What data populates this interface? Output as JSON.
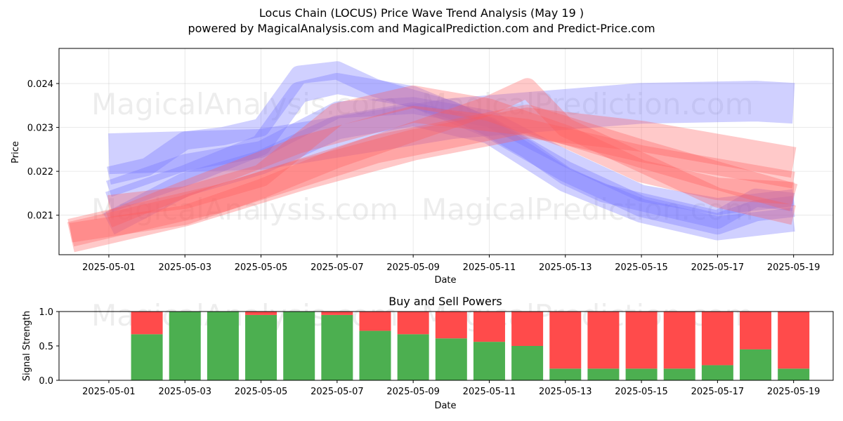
{
  "header": {
    "title": "Locus Chain (LOCUS) Price Wave Trend Analysis (May 19 )",
    "subtitle": "powered by MagicalAnalysis.com and MagicalPrediction.com and Predict-Price.com"
  },
  "watermarks": [
    "MagicalAnalysis.com",
    "MagicalPrediction.com"
  ],
  "colors": {
    "buy": "#4caf50",
    "sell": "#ff4b4b",
    "wave_blue": "#6f6fff",
    "wave_red": "#ff5a5a"
  },
  "chart_data": [
    {
      "type": "area",
      "name": "price-wave-chart",
      "xlabel": "Date",
      "ylabel": "Price",
      "x_ticks": [
        "2025-05-01",
        "2025-05-03",
        "2025-05-05",
        "2025-05-07",
        "2025-05-09",
        "2025-05-11",
        "2025-05-13",
        "2025-05-15",
        "2025-05-17",
        "2025-05-19"
      ],
      "y_ticks": [
        "0.021",
        "0.022",
        "0.023",
        "0.024"
      ],
      "xlim": [
        "2025-04-30",
        "2025-05-20"
      ],
      "ylim": [
        0.0201,
        0.0248
      ],
      "grid": true,
      "series": [
        {
          "color": "blue",
          "x": [
            "2025-05-01",
            "2025-05-05",
            "2025-05-10",
            "2025-05-15",
            "2025-05-18",
            "2025-05-19"
          ],
          "y": [
            0.0224,
            0.0225,
            0.0232,
            0.02355,
            0.0236,
            0.02355
          ]
        },
        {
          "color": "blue",
          "x": [
            "2025-05-01",
            "2025-05-02",
            "2025-05-03",
            "2025-05-04",
            "2025-05-05",
            "2025-05-06",
            "2025-05-07",
            "2025-05-08",
            "2025-05-10",
            "2025-05-11",
            "2025-05-12",
            "2025-05-13",
            "2025-05-14",
            "2025-05-15",
            "2025-05-16",
            "2025-05-17",
            "2025-05-18",
            "2025-05-19"
          ],
          "y": [
            0.0219,
            0.0221,
            0.0227,
            0.0228,
            0.023,
            0.0242,
            0.0243,
            0.0239,
            0.0234,
            0.023,
            0.0225,
            0.0219,
            0.0215,
            0.0213,
            0.0211,
            0.0209,
            0.0214,
            0.0213
          ]
        },
        {
          "color": "blue",
          "x": [
            "2025-05-01",
            "2025-05-03",
            "2025-05-05",
            "2025-05-06",
            "2025-05-07",
            "2025-05-09",
            "2025-05-11",
            "2025-05-13",
            "2025-05-15",
            "2025-05-17",
            "2025-05-18",
            "2025-05-19"
          ],
          "y": [
            0.0213,
            0.0219,
            0.0226,
            0.0238,
            0.024,
            0.0237,
            0.023,
            0.022,
            0.0212,
            0.0208,
            0.0211,
            0.0212
          ]
        },
        {
          "color": "blue",
          "x": [
            "2025-05-01",
            "2025-05-03",
            "2025-05-05",
            "2025-05-07",
            "2025-05-09",
            "2025-05-11",
            "2025-05-13",
            "2025-05-15",
            "2025-05-17",
            "2025-05-19"
          ],
          "y": [
            0.0208,
            0.0217,
            0.0222,
            0.023,
            0.0233,
            0.0229,
            0.0218,
            0.0211,
            0.0207,
            0.0209
          ]
        },
        {
          "color": "blue",
          "x": [
            "2025-05-01",
            "2025-05-03",
            "2025-05-05",
            "2025-05-07",
            "2025-05-09",
            "2025-05-11",
            "2025-05-13",
            "2025-05-15",
            "2025-05-17",
            "2025-05-19"
          ],
          "y": [
            0.0216,
            0.0222,
            0.0225,
            0.0234,
            0.0235,
            0.0232,
            0.0223,
            0.0215,
            0.0212,
            0.0214
          ]
        },
        {
          "color": "red",
          "x": [
            "2025-04-30",
            "2025-05-03",
            "2025-05-05",
            "2025-05-07",
            "2025-05-09",
            "2025-05-11",
            "2025-05-12",
            "2025-05-13",
            "2025-05-15",
            "2025-05-17",
            "2025-05-19"
          ],
          "y": [
            0.0206,
            0.021,
            0.0216,
            0.0223,
            0.0229,
            0.0235,
            0.0239,
            0.023,
            0.0222,
            0.0214,
            0.021
          ]
        },
        {
          "color": "red",
          "x": [
            "2025-04-30",
            "2025-05-03",
            "2025-05-06",
            "2025-05-09",
            "2025-05-12",
            "2025-05-15",
            "2025-05-19"
          ],
          "y": [
            0.0205,
            0.0211,
            0.0219,
            0.0226,
            0.0231,
            0.0228,
            0.0222
          ]
        },
        {
          "color": "red",
          "x": [
            "2025-05-01",
            "2025-05-03",
            "2025-05-05",
            "2025-05-07",
            "2025-05-09",
            "2025-05-11",
            "2025-05-13",
            "2025-05-15",
            "2025-05-17",
            "2025-05-19"
          ],
          "y": [
            0.0212,
            0.0214,
            0.0219,
            0.0233,
            0.0237,
            0.0234,
            0.0228,
            0.022,
            0.0216,
            0.0215
          ]
        },
        {
          "color": "red",
          "x": [
            "2025-05-01",
            "2025-05-03",
            "2025-05-06",
            "2025-05-09",
            "2025-05-12",
            "2025-05-15",
            "2025-05-19"
          ],
          "y": [
            0.0209,
            0.0216,
            0.0226,
            0.0233,
            0.023,
            0.0224,
            0.0218
          ]
        },
        {
          "color": "red",
          "x": [
            "2025-04-30",
            "2025-05-04",
            "2025-05-08",
            "2025-05-12",
            "2025-05-15",
            "2025-05-19"
          ],
          "y": [
            0.0206,
            0.0214,
            0.0225,
            0.0232,
            0.0224,
            0.0214
          ]
        }
      ]
    },
    {
      "type": "bar",
      "name": "buy-sell-powers-chart",
      "title": "Buy and Sell Powers",
      "xlabel": "Date",
      "ylabel": "Signal Strength",
      "x_ticks": [
        "2025-05-01",
        "2025-05-03",
        "2025-05-05",
        "2025-05-07",
        "2025-05-09",
        "2025-05-11",
        "2025-05-13",
        "2025-05-15",
        "2025-05-17",
        "2025-05-19"
      ],
      "y_ticks": [
        "0.0",
        "0.5",
        "1.0"
      ],
      "ylim": [
        0,
        1
      ],
      "categories": [
        "2025-05-02",
        "2025-05-03",
        "2025-05-04",
        "2025-05-05",
        "2025-05-06",
        "2025-05-07",
        "2025-05-08",
        "2025-05-09",
        "2025-05-10",
        "2025-05-11",
        "2025-05-12",
        "2025-05-13",
        "2025-05-14",
        "2025-05-15",
        "2025-05-16",
        "2025-05-17",
        "2025-05-18",
        "2025-05-19"
      ],
      "series": [
        {
          "color": "green",
          "values": [
            0.67,
            1.0,
            1.0,
            0.95,
            1.0,
            0.95,
            0.72,
            0.67,
            0.61,
            0.56,
            0.5,
            0.17,
            0.17,
            0.17,
            0.17,
            0.22,
            0.45,
            0.17
          ]
        },
        {
          "color": "red",
          "values": [
            0.33,
            0.0,
            0.0,
            0.05,
            0.0,
            0.05,
            0.28,
            0.33,
            0.39,
            0.44,
            0.5,
            0.83,
            0.83,
            0.83,
            0.83,
            0.78,
            0.55,
            0.83
          ]
        }
      ]
    }
  ]
}
